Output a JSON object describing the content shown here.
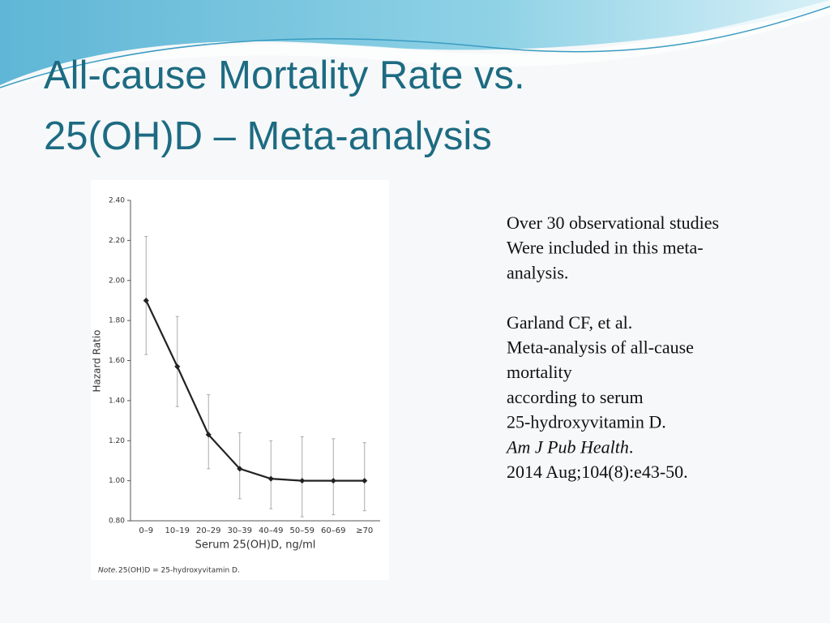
{
  "title": [
    "All-cause Mortality Rate vs.",
    "25(OH)D – Meta-analysis"
  ],
  "notes": {
    "paragraphs": [
      [
        "Over 30 observational studies",
        "Were included in this meta-",
        "analysis."
      ],
      [
        "Garland CF, et al.",
        "Meta-analysis of all-cause",
        "mortality",
        "according to serum",
        "25-hydroxyvitamin D."
      ]
    ],
    "journal": "Am J Pub Health",
    "journal_end": ".",
    "citation": "2014 Aug;104(8):e43-50."
  },
  "chart_data": {
    "type": "line",
    "xlabel": "Serum 25(OH)D, ng/ml",
    "ylabel": "Hazard Ratio",
    "note_label": "Note.",
    "note": "25(OH)D = 25-hydroxyvitamin D.",
    "categories": [
      "0–9",
      "10–19",
      "20–29",
      "30–39",
      "40–49",
      "50–59",
      "60–69",
      "≥70"
    ],
    "series": [
      {
        "color": "#222222",
        "values": [
          1.9,
          1.57,
          1.23,
          1.06,
          1.01,
          1.0,
          1.0,
          1.0
        ],
        "lower": [
          1.63,
          1.37,
          1.06,
          0.91,
          0.86,
          0.82,
          0.83,
          0.85
        ],
        "upper": [
          2.22,
          1.82,
          1.43,
          1.24,
          1.2,
          1.22,
          1.21,
          1.19
        ]
      }
    ],
    "ylim": [
      0.8,
      2.4
    ],
    "yticks": [
      {
        "value": 0.8,
        "label": "0.80"
      },
      {
        "value": 1.0,
        "label": "1.00"
      },
      {
        "value": 1.2,
        "label": "1.20"
      },
      {
        "value": 1.4,
        "label": "1.40"
      },
      {
        "value": 1.6,
        "label": "1.60"
      },
      {
        "value": 1.8,
        "label": "1.80"
      },
      {
        "value": 2.0,
        "label": "2.00"
      },
      {
        "value": 2.2,
        "label": "2.20"
      },
      {
        "value": 2.4,
        "label": "2.40"
      }
    ]
  }
}
